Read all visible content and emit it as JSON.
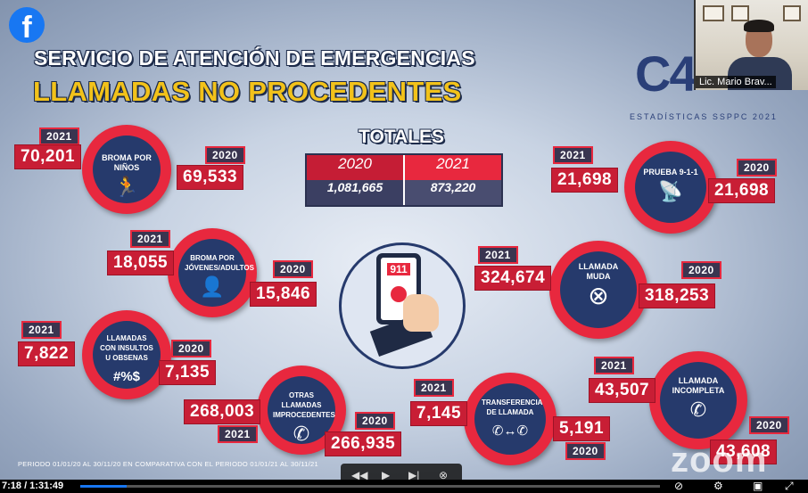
{
  "app": {
    "brand_icon": "facebook-icon"
  },
  "header": {
    "title_line1": "SERVICIO DE ATENCIÓN DE EMERGENCIAS",
    "title_line2": "LLAMADAS NO PROCEDENTES",
    "logo_text": "C4",
    "logo_subtitle": "ESTADÍSTICAS SSPPC 2021"
  },
  "totales": {
    "title": "TOTALES",
    "headers": [
      "2020",
      "2021"
    ],
    "values": [
      "1,081,665",
      "873,220"
    ]
  },
  "categories": [
    {
      "label": "BROMA POR NIÑOS",
      "icon": "running-child-icon",
      "year_a": "2021",
      "value_a": "70,201",
      "year_b": "2020",
      "value_b": "69,533"
    },
    {
      "label": "BROMA POR JÓVENES/ADULTOS",
      "icon": "person-icon",
      "year_a": "2021",
      "value_a": "18,055",
      "year_b": "2020",
      "value_b": "15,846"
    },
    {
      "label": "LLAMADAS CON INSULTOS U OBSENAS",
      "icon": "#%$",
      "year_a": "2021",
      "value_a": "7,822",
      "year_b": "2020",
      "value_b": "7,135"
    },
    {
      "label": "OTRAS LLAMADAS IMPROCEDENTES",
      "icon": "phone-icon",
      "year_a": "2021",
      "value_a": "268,003",
      "year_b": "2020",
      "value_b": "266,935"
    },
    {
      "label": "TRANSFERENCIA DE LLAMADA",
      "icon": "transfer-icon",
      "year_a": "2021",
      "value_a": "7,145",
      "year_b": "2020",
      "value_b": "5,191"
    },
    {
      "label": "PRUEBA 9-1-1",
      "icon": "antenna-icon",
      "year_a": "2021",
      "value_a": "21,698",
      "year_b": "2020",
      "value_b": "21,698"
    },
    {
      "label": "LLAMADA MUDA",
      "icon": "x-circle-icon",
      "year_a": "2021",
      "value_a": "324,674",
      "year_b": "2020",
      "value_b": "318,253"
    },
    {
      "label": "LLAMADA INCOMPLETA",
      "icon": "phone-x-icon",
      "year_a": "2021",
      "value_a": "43,507",
      "year_b": "2020",
      "value_b": "43,608"
    }
  ],
  "center_image": {
    "label": "911"
  },
  "footer": {
    "period": "PERIODO 01/01/20 AL 30/11/20 EN COMPARATIVA CON EL PERIODO 01/01/21 AL 30/11/21"
  },
  "webcam": {
    "participant_name": "Lic. Mario Brav..."
  },
  "watermark": "zoom",
  "player": {
    "time": "7:18 / 1:31:49",
    "progress": 0.08
  }
}
